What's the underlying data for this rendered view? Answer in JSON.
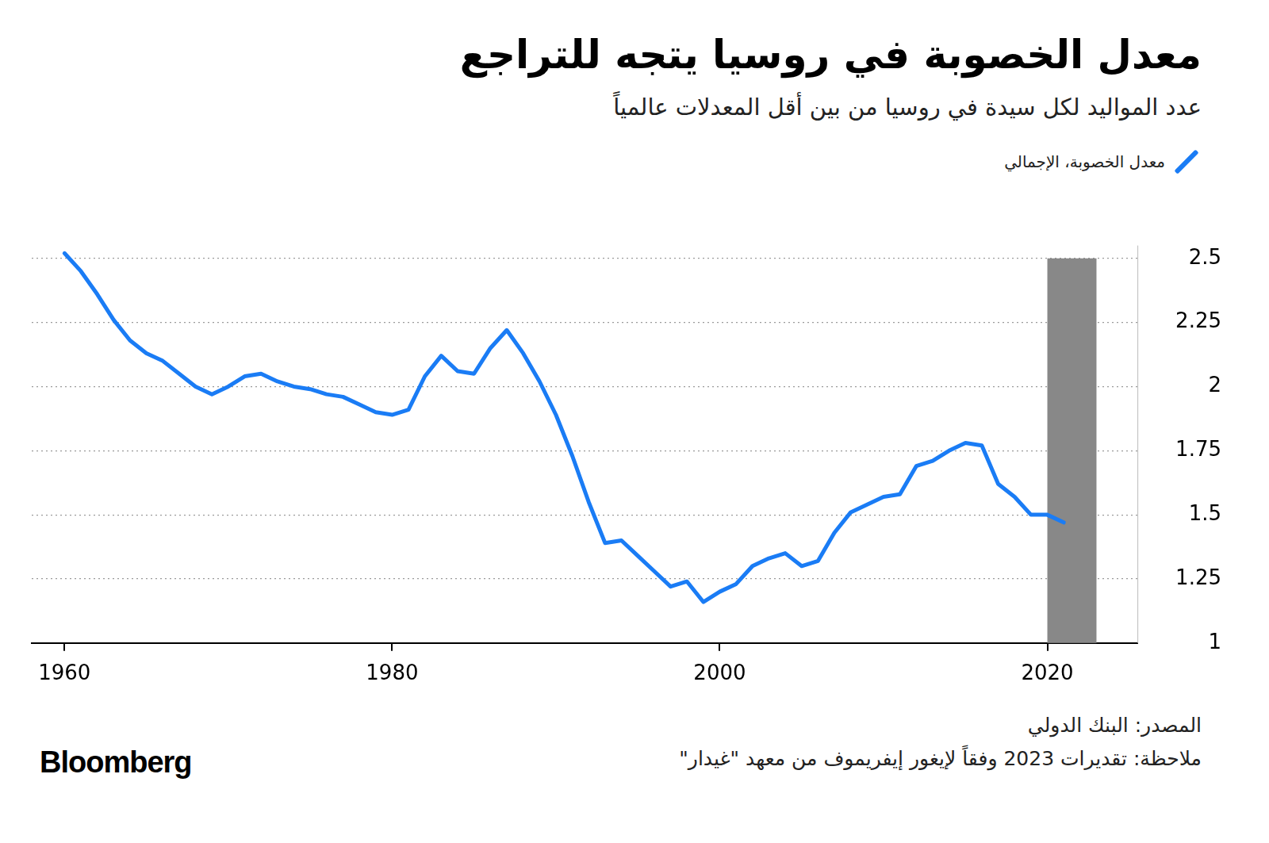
{
  "chart_data": {
    "type": "line",
    "title": "معدل الخصوبة في روسيا يتجه للتراجع",
    "subtitle": "عدد المواليد لكل سيدة في روسيا من بين أقل المعدلات عالمياً",
    "x": [
      1960,
      1961,
      1962,
      1963,
      1964,
      1965,
      1966,
      1967,
      1968,
      1969,
      1970,
      1971,
      1972,
      1973,
      1974,
      1975,
      1976,
      1977,
      1978,
      1979,
      1980,
      1981,
      1982,
      1983,
      1984,
      1985,
      1986,
      1987,
      1988,
      1989,
      1990,
      1991,
      1992,
      1993,
      1994,
      1995,
      1996,
      1997,
      1998,
      1999,
      2000,
      2001,
      2002,
      2003,
      2004,
      2005,
      2006,
      2007,
      2008,
      2009,
      2010,
      2011,
      2012,
      2013,
      2014,
      2015,
      2016,
      2017,
      2018,
      2019,
      2020,
      2021
    ],
    "series": [
      {
        "name": "معدل الخصوبة، الإجمالي",
        "color": "#1a7cf5",
        "values": [
          2.52,
          2.45,
          2.36,
          2.26,
          2.18,
          2.13,
          2.1,
          2.05,
          2.0,
          1.97,
          2.0,
          2.04,
          2.05,
          2.02,
          2.0,
          1.99,
          1.97,
          1.96,
          1.93,
          1.9,
          1.89,
          1.91,
          2.04,
          2.12,
          2.06,
          2.05,
          2.15,
          2.22,
          2.13,
          2.02,
          1.89,
          1.73,
          1.55,
          1.39,
          1.4,
          1.34,
          1.28,
          1.22,
          1.24,
          1.16,
          1.2,
          1.23,
          1.3,
          1.33,
          1.35,
          1.3,
          1.32,
          1.43,
          1.51,
          1.54,
          1.57,
          1.58,
          1.69,
          1.71,
          1.75,
          1.78,
          1.77,
          1.62,
          1.57,
          1.5,
          1.5,
          1.47
        ]
      }
    ],
    "xlim": [
      1958,
      2025.5
    ],
    "xticks": [
      1960,
      1980,
      2000,
      2020
    ],
    "ylim": [
      1,
      2.55
    ],
    "yticks": [
      1,
      1.25,
      1.5,
      1.75,
      2,
      2.25,
      2.5
    ],
    "grid": true,
    "legend": "top-right",
    "shaded_region": {
      "x": [
        2020,
        2023
      ],
      "y": [
        1,
        2.5
      ],
      "color": "#888888"
    },
    "source": "المصدر: البنك الدولي",
    "note": "ملاحظة: تقديرات 2023 وفقاً لإيغور إيفريموف من معهد \"غيدار\"",
    "logo": "Bloomberg"
  }
}
